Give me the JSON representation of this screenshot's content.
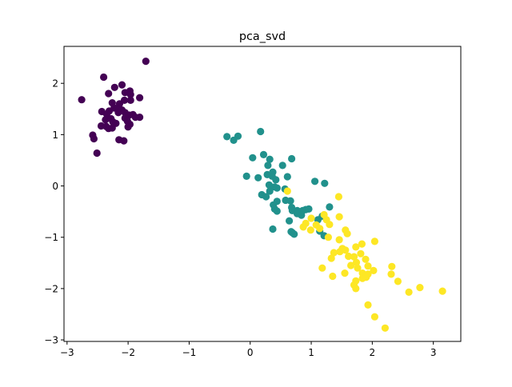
{
  "chart_data": {
    "type": "scatter",
    "title": "pca_svd",
    "xlabel": "",
    "ylabel": "",
    "xlim": [
      -3.05,
      3.45
    ],
    "ylim": [
      -3.03,
      2.72
    ],
    "xticks": [
      -3,
      -2,
      -1,
      0,
      1,
      2,
      3
    ],
    "yticks": [
      -3,
      -2,
      -1,
      0,
      1,
      2
    ],
    "xtick_labels": [
      "−3",
      "−2",
      "−1",
      "0",
      "1",
      "2",
      "3"
    ],
    "ytick_labels": [
      "−3",
      "−2",
      "−1",
      "0",
      "1",
      "2"
    ],
    "grid": false,
    "legend": "none",
    "colors": [
      "#440154",
      "#21918c",
      "#fde725"
    ],
    "series": [
      {
        "color": "#440154",
        "points": [
          [
            -1.71,
            2.43
          ],
          [
            -2.76,
            1.68
          ],
          [
            -2.4,
            2.12
          ],
          [
            -2.32,
            1.8
          ],
          [
            -2.1,
            1.97
          ],
          [
            -2.22,
            1.92
          ],
          [
            -2.05,
            1.82
          ],
          [
            -1.97,
            1.85
          ],
          [
            -1.96,
            1.78
          ],
          [
            -1.81,
            1.72
          ],
          [
            -2.26,
            1.62
          ],
          [
            -2.14,
            1.6
          ],
          [
            -2.06,
            1.67
          ],
          [
            -1.96,
            1.67
          ],
          [
            -2.31,
            1.46
          ],
          [
            -2.23,
            1.52
          ],
          [
            -2.18,
            1.5
          ],
          [
            -2.1,
            1.48
          ],
          [
            -2.16,
            1.43
          ],
          [
            -2.05,
            1.43
          ],
          [
            -2.43,
            1.45
          ],
          [
            -2.35,
            1.4
          ],
          [
            -1.98,
            1.38
          ],
          [
            -1.92,
            1.39
          ],
          [
            -1.88,
            1.34
          ],
          [
            -1.81,
            1.34
          ],
          [
            -2.37,
            1.29
          ],
          [
            -2.28,
            1.31
          ],
          [
            -2.05,
            1.32
          ],
          [
            -2.25,
            1.25
          ],
          [
            -2.2,
            1.22
          ],
          [
            -2.01,
            1.26
          ],
          [
            -1.97,
            1.2
          ],
          [
            -2.44,
            1.17
          ],
          [
            -2.36,
            1.16
          ],
          [
            -2.32,
            1.12
          ],
          [
            -2.26,
            1.13
          ],
          [
            -2.0,
            1.15
          ],
          [
            -2.58,
            0.99
          ],
          [
            -2.56,
            0.92
          ],
          [
            -2.15,
            0.9
          ],
          [
            -2.07,
            0.88
          ],
          [
            -2.51,
            0.64
          ]
        ]
      },
      {
        "color": "#21918c",
        "points": [
          [
            0.17,
            1.06
          ],
          [
            -0.38,
            0.96
          ],
          [
            -0.2,
            0.97
          ],
          [
            -0.27,
            0.89
          ],
          [
            0.22,
            0.61
          ],
          [
            0.32,
            0.52
          ],
          [
            0.68,
            0.53
          ],
          [
            0.04,
            0.55
          ],
          [
            0.29,
            0.4
          ],
          [
            0.53,
            0.4
          ],
          [
            0.28,
            0.22
          ],
          [
            0.37,
            0.27
          ],
          [
            0.36,
            0.19
          ],
          [
            0.42,
            0.12
          ],
          [
            -0.06,
            0.19
          ],
          [
            0.13,
            0.16
          ],
          [
            0.61,
            0.18
          ],
          [
            1.06,
            0.09
          ],
          [
            1.22,
            0.05
          ],
          [
            0.31,
            0.02
          ],
          [
            0.4,
            -0.02
          ],
          [
            0.32,
            -0.1
          ],
          [
            0.44,
            -0.04
          ],
          [
            0.57,
            -0.06
          ],
          [
            0.19,
            -0.17
          ],
          [
            0.26,
            -0.21
          ],
          [
            0.44,
            -0.3
          ],
          [
            0.58,
            -0.28
          ],
          [
            0.66,
            -0.29
          ],
          [
            0.38,
            -0.37
          ],
          [
            0.4,
            -0.45
          ],
          [
            0.44,
            -0.49
          ],
          [
            0.68,
            -0.42
          ],
          [
            0.69,
            -0.48
          ],
          [
            0.77,
            -0.48
          ],
          [
            0.86,
            -0.48
          ],
          [
            0.91,
            -0.46
          ],
          [
            0.77,
            -0.54
          ],
          [
            0.84,
            -0.57
          ],
          [
            0.96,
            -0.45
          ],
          [
            1.3,
            -0.41
          ],
          [
            1.18,
            -0.59
          ],
          [
            1.11,
            -0.66
          ],
          [
            0.64,
            -0.68
          ],
          [
            0.37,
            -0.84
          ],
          [
            0.69,
            -0.91
          ],
          [
            0.72,
            -0.94
          ],
          [
            1.14,
            -0.88
          ],
          [
            1.21,
            -0.97
          ],
          [
            0.67,
            -0.89
          ]
        ]
      },
      {
        "color": "#fde725",
        "points": [
          [
            1.45,
            -0.21
          ],
          [
            0.61,
            -0.1
          ],
          [
            1.21,
            -0.56
          ],
          [
            1.46,
            -0.6
          ],
          [
            1.0,
            -0.63
          ],
          [
            1.25,
            -0.66
          ],
          [
            1.3,
            -0.75
          ],
          [
            0.91,
            -0.73
          ],
          [
            1.08,
            -0.76
          ],
          [
            0.87,
            -0.8
          ],
          [
            0.99,
            -0.86
          ],
          [
            1.14,
            -0.83
          ],
          [
            1.56,
            -0.86
          ],
          [
            1.59,
            -0.93
          ],
          [
            1.28,
            -1.0
          ],
          [
            1.46,
            -1.05
          ],
          [
            2.04,
            -1.08
          ],
          [
            1.83,
            -1.13
          ],
          [
            1.73,
            -1.19
          ],
          [
            1.51,
            -1.22
          ],
          [
            1.56,
            -1.25
          ],
          [
            1.47,
            -1.28
          ],
          [
            1.37,
            -1.3
          ],
          [
            1.61,
            -1.37
          ],
          [
            1.7,
            -1.38
          ],
          [
            1.81,
            -1.32
          ],
          [
            1.89,
            -1.43
          ],
          [
            1.74,
            -1.49
          ],
          [
            1.65,
            -1.55
          ],
          [
            1.33,
            -1.41
          ],
          [
            1.18,
            -1.6
          ],
          [
            1.76,
            -1.6
          ],
          [
            1.93,
            -1.56
          ],
          [
            2.32,
            -1.57
          ],
          [
            2.02,
            -1.65
          ],
          [
            1.55,
            -1.7
          ],
          [
            1.35,
            -1.76
          ],
          [
            1.84,
            -1.7
          ],
          [
            1.93,
            -1.72
          ],
          [
            2.31,
            -1.72
          ],
          [
            1.73,
            -1.85
          ],
          [
            1.84,
            -1.8
          ],
          [
            1.9,
            -1.78
          ],
          [
            2.42,
            -1.86
          ],
          [
            1.7,
            -1.93
          ],
          [
            1.73,
            -2.0
          ],
          [
            2.78,
            -1.98
          ],
          [
            2.6,
            -2.07
          ],
          [
            3.15,
            -2.05
          ],
          [
            1.93,
            -2.32
          ],
          [
            2.04,
            -2.55
          ],
          [
            2.21,
            -2.77
          ]
        ]
      }
    ]
  }
}
